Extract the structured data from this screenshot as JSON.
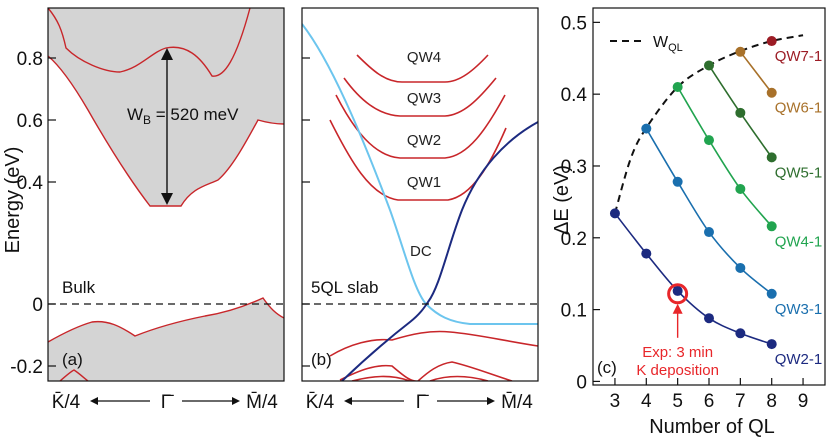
{
  "chart_data": [
    {
      "panel": "(a)",
      "type": "line",
      "ylabel": "Energy (eV)",
      "ylim": [
        -0.26,
        0.94
      ],
      "y_ticks": [
        "-0.2",
        "0",
        "0.4",
        "0.6",
        "0.8"
      ],
      "x_ticks": [
        "K̄/4",
        "Γ̄",
        "M̄/4"
      ],
      "label": "Bulk",
      "annotation": "W",
      "annotation_sub": "B",
      "annotation_value": " = 520 meV",
      "bandwidth_meV": 520,
      "gap_bottom_eV": 0.33,
      "gap_top_eV": 0.85,
      "fill_color": "#d4d4d4",
      "edge_color": "#c8262a"
    },
    {
      "panel": "(b)",
      "type": "line",
      "ylim": [
        -0.26,
        0.94
      ],
      "x_ticks": [
        "K̄/4",
        "Γ̄",
        "M̄/4"
      ],
      "label": "5QL slab",
      "bands": [
        {
          "name": "QW4",
          "min_eV": 0.74
        },
        {
          "name": "QW3",
          "min_eV": 0.64
        },
        {
          "name": "QW2",
          "min_eV": 0.51
        },
        {
          "name": "QW1",
          "min_eV": 0.38
        }
      ],
      "dirac_label": "DC",
      "dirac_point_eV": 0,
      "colors": {
        "qw": "#c8262a",
        "dc_upper": "#6cc5ee",
        "dc_lower": "#1c2a80"
      }
    },
    {
      "panel": "(c)",
      "type": "scatter",
      "xlabel": "Number of QL",
      "ylabel": "ΔE (eV)",
      "xlim": [
        2.3,
        9.7
      ],
      "ylim": [
        -0.005,
        0.52
      ],
      "x_ticks": [
        3,
        4,
        5,
        6,
        7,
        8,
        9
      ],
      "y_ticks": [
        "0",
        "0.1",
        "0.2",
        "0.3",
        "0.4",
        "0.5"
      ],
      "wql_label": "W",
      "wql_sub": "QL",
      "wql": {
        "x": [
          3,
          3.5,
          4,
          5,
          6,
          7,
          8,
          9
        ],
        "y": [
          0.234,
          0.31,
          0.353,
          0.41,
          0.44,
          0.46,
          0.474,
          0.482
        ]
      },
      "series": [
        {
          "name": "QW2-1",
          "color": "#1c2a80",
          "x": [
            3,
            4,
            5,
            6,
            7,
            8
          ],
          "y": [
            0.234,
            0.178,
            0.126,
            0.088,
            0.067,
            0.052
          ]
        },
        {
          "name": "QW3-1",
          "color": "#1a6fae",
          "x": [
            4,
            5,
            6,
            7,
            8
          ],
          "y": [
            0.352,
            0.278,
            0.208,
            0.158,
            0.122
          ]
        },
        {
          "name": "QW4-1",
          "color": "#21a44f",
          "x": [
            5,
            6,
            7,
            8
          ],
          "y": [
            0.41,
            0.336,
            0.268,
            0.216
          ]
        },
        {
          "name": "QW5-1",
          "color": "#2e6e2e",
          "x": [
            6,
            7,
            8
          ],
          "y": [
            0.44,
            0.374,
            0.312
          ]
        },
        {
          "name": "QW6-1",
          "color": "#a8712a",
          "x": [
            7,
            8
          ],
          "y": [
            0.459,
            0.402
          ]
        },
        {
          "name": "QW7-1",
          "color": "#9c1c25",
          "x": [
            8
          ],
          "y": [
            0.474
          ]
        }
      ],
      "experiment": {
        "x": 5,
        "y": 0.122,
        "line1": "Exp: 3 min",
        "line2": "K deposition",
        "color": "#e8262a"
      },
      "panel_label": "(c)"
    }
  ]
}
